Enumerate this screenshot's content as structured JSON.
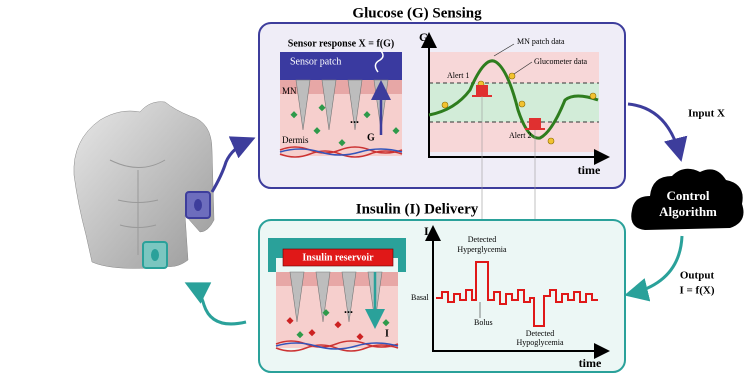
{
  "sensing": {
    "title": "Glucose (G) Sensing",
    "patch": {
      "caption": "Sensor response X = f(G)",
      "label": "Sensor patch",
      "mn": "MN",
      "dermis": "Dermis",
      "analyte": "G",
      "ellipsis": "..."
    },
    "plot": {
      "y_label": "G",
      "x_label": "time",
      "patch_data": "MN patch data",
      "glucometer_data": "Glucometer data",
      "alert_1": "Alert 1",
      "alert_2": "Alert 2"
    }
  },
  "controller": {
    "input": "Input X",
    "label": [
      "Control",
      "Algorithm"
    ],
    "output": "Output",
    "output_formula": "I = f(X)"
  },
  "delivery": {
    "title": "Insulin (I) Delivery",
    "patch": {
      "reservoir": "Insulin reservoir",
      "analyte": "I",
      "ellipsis": "..."
    },
    "plot": {
      "y_label": "I",
      "x_label": "time",
      "hyper": [
        "Detected",
        "Hyperglycemia"
      ],
      "basal": "Basal",
      "bolus": "Bolus",
      "hypo": [
        "Detected",
        "Hypoglycemia"
      ]
    }
  }
}
